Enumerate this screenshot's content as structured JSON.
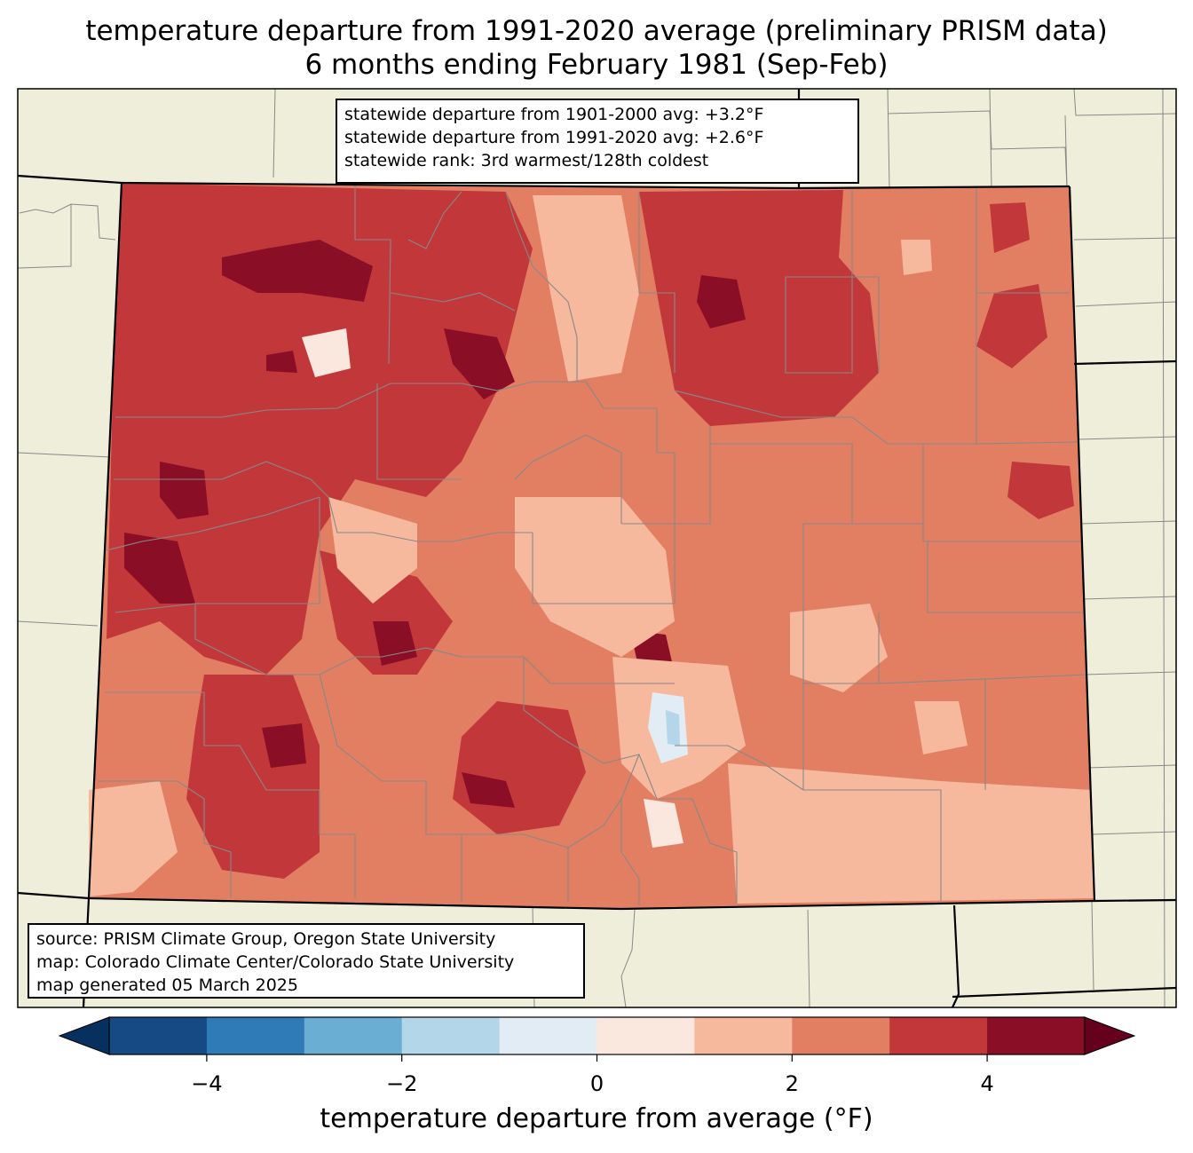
{
  "title": {
    "line1": "temperature departure from 1991-2020 average (preliminary PRISM data)",
    "line2": "6 months ending February 1981 (Sep-Feb)"
  },
  "stats": {
    "line1": "statewide departure from 1901-2000 avg: +3.2°F",
    "line2": "statewide departure from 1991-2020 avg: +2.6°F",
    "line3": "statewide rank: 3rd warmest/128th coldest"
  },
  "source": {
    "line1": "source: PRISM Climate Group, Oregon State University",
    "line2": "map: Colorado Climate Center/Colorado State University",
    "line3": "map generated 05 March 2025"
  },
  "colorbar": {
    "label": "temperature departure from average (°F)",
    "ticks": [
      "−4",
      "−2",
      "0",
      "2",
      "4"
    ],
    "tick_values": [
      -4,
      -2,
      0,
      2,
      4
    ],
    "range": [
      -5,
      5
    ],
    "bins": [
      {
        "from": -5,
        "to": -4,
        "color": "#154a85"
      },
      {
        "from": -4,
        "to": -3,
        "color": "#2e7bb8"
      },
      {
        "from": -3,
        "to": -2,
        "color": "#6aaed3"
      },
      {
        "from": -2,
        "to": -1,
        "color": "#b3d6e8"
      },
      {
        "from": -1,
        "to": 0,
        "color": "#e2ecf4"
      },
      {
        "from": 0,
        "to": 1,
        "color": "#fae7de"
      },
      {
        "from": 1,
        "to": 2,
        "color": "#f6b99d"
      },
      {
        "from": 2,
        "to": 3,
        "color": "#e27f63"
      },
      {
        "from": 3,
        "to": 4,
        "color": "#c2383a"
      },
      {
        "from": 4,
        "to": 5,
        "color": "#8a0e25"
      }
    ],
    "under_color": "#08305e",
    "over_color": "#66001f"
  },
  "colors": {
    "land": "#efeedb",
    "county_lines": "#888888",
    "state_lines": "#000000"
  }
}
